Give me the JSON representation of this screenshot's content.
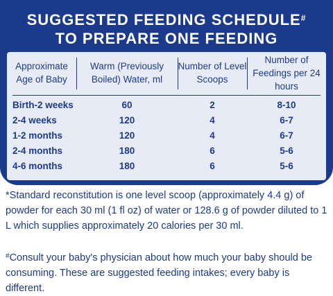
{
  "header": {
    "title_line1": "SUGGESTED FEEDING SCHEDULE",
    "title_mark": "#",
    "title_line2": "TO PREPARE ONE FEEDING"
  },
  "table": {
    "columns": [
      "Approximate Age of Baby",
      "Warm (Previously Boiled) Water, ml",
      "Number of Level Scoops",
      "Number of Feedings per 24 hours"
    ],
    "rows": [
      [
        "Birth-2 weeks",
        "60",
        "2",
        "8-10"
      ],
      [
        "2-4 weeks",
        "120",
        "4",
        "6-7"
      ],
      [
        "1-2 months",
        "120",
        "4",
        "6-7"
      ],
      [
        "2-4 months",
        "180",
        "6",
        "5-6"
      ],
      [
        "4-6 months",
        "180",
        "6",
        "5-6"
      ]
    ]
  },
  "notes": {
    "standard": "*Standard reconstitution is one level scoop (approximately 4.4 g) of powder for each 30 ml (1 fl oz) of water or 128.6 g of powder diluted to 1 L which supplies approximately 20 calories per 30 ml.",
    "consult_mark": "#",
    "consult": "Consult your baby's physician about how much your baby should be consuming. These are suggested feeding intakes; every baby is different."
  },
  "colors": {
    "brand_blue": "#1c3a8c",
    "table_bg": "#e7ebf5"
  }
}
